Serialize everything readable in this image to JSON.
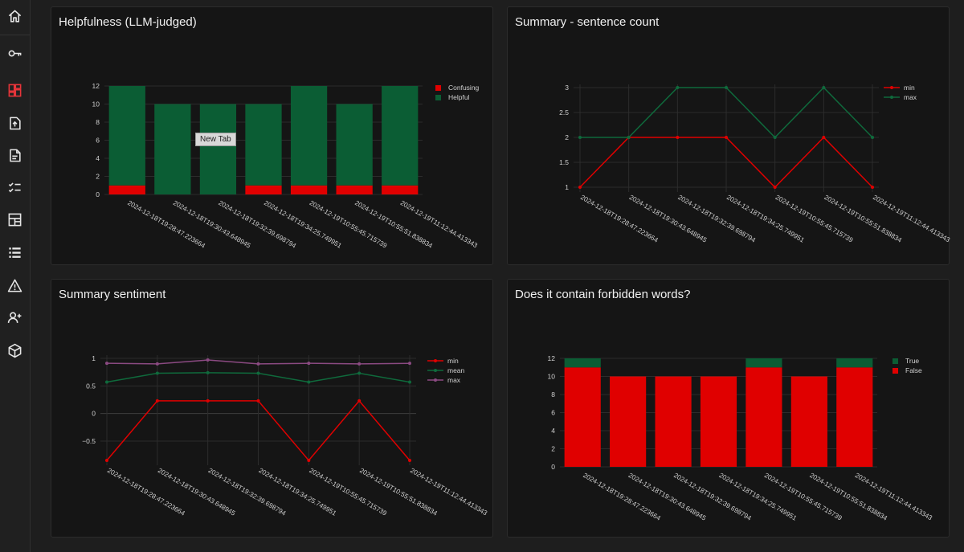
{
  "sidebar": {
    "items": [
      {
        "icon": "home-icon",
        "active": false
      },
      {
        "icon": "key-icon",
        "active": false
      },
      {
        "icon": "dashboard-icon",
        "active": true
      },
      {
        "icon": "upload-file-icon",
        "active": false
      },
      {
        "icon": "document-icon",
        "active": false
      },
      {
        "icon": "checklist-icon",
        "active": false
      },
      {
        "icon": "layout-icon",
        "active": false
      },
      {
        "icon": "list-icon",
        "active": false
      },
      {
        "icon": "warning-icon",
        "active": false
      },
      {
        "icon": "add-user-icon",
        "active": false
      },
      {
        "icon": "cube-icon",
        "active": false
      }
    ]
  },
  "colors": {
    "red": "#e00000",
    "green": "#0b5d34",
    "purple": "#8b4a82",
    "line_green": "#0f6a3c"
  },
  "tooltip": "New Tab",
  "panels": [
    {
      "title": "Helpfulness (LLM-judged)"
    },
    {
      "title": "Summary - sentence count"
    },
    {
      "title": "Summary sentiment"
    },
    {
      "title": "Does it contain forbidden words?"
    }
  ],
  "chart_data": [
    {
      "type": "bar",
      "stacked": true,
      "categories": [
        "2024-12-18T19:28:47.223664",
        "2024-12-18T19:30:43.648945",
        "2024-12-18T19:32:39.698794",
        "2024-12-18T19:34:25.749951",
        "2024-12-19T10:55:45.715739",
        "2024-12-19T10:55:51.838834",
        "2024-12-19T11:12:44.413343"
      ],
      "series": [
        {
          "name": "Confusing",
          "values": [
            1,
            0,
            0,
            1,
            1,
            1,
            1
          ],
          "color": "#e00000"
        },
        {
          "name": "Helpful",
          "values": [
            11,
            10,
            10,
            9,
            11,
            9,
            11
          ],
          "color": "#0b5d34"
        }
      ],
      "ylim": [
        0,
        12
      ],
      "yticks": [
        0,
        2,
        4,
        6,
        8,
        10,
        12
      ],
      "grid": true,
      "legend": "top-right"
    },
    {
      "type": "line",
      "categories": [
        "2024-12-18T19:28:47.223664",
        "2024-12-18T19:30:43.648945",
        "2024-12-18T19:32:39.698794",
        "2024-12-18T19:34:25.749951",
        "2024-12-19T10:55:45.715739",
        "2024-12-19T10:55:51.838834",
        "2024-12-19T11:12:44.413343"
      ],
      "series": [
        {
          "name": "min",
          "values": [
            1,
            2,
            2,
            2,
            1,
            2,
            1
          ],
          "color": "#e00000"
        },
        {
          "name": "max",
          "values": [
            2,
            2,
            3,
            3,
            2,
            3,
            2
          ],
          "color": "#0f6a3c"
        }
      ],
      "ylim": [
        1,
        3
      ],
      "yticks": [
        1,
        1.5,
        2,
        2.5,
        3
      ],
      "grid": true,
      "legend": "top-right"
    },
    {
      "type": "line",
      "categories": [
        "2024-12-18T19:28:47.223664",
        "2024-12-18T19:30:43.648945",
        "2024-12-18T19:32:39.698794",
        "2024-12-18T19:34:25.749951",
        "2024-12-19T10:55:45.715739",
        "2024-12-19T10:55:51.838834",
        "2024-12-19T11:12:44.413343"
      ],
      "series": [
        {
          "name": "min",
          "values": [
            -0.85,
            0.23,
            0.23,
            0.23,
            -0.85,
            0.23,
            -0.85
          ],
          "color": "#e00000"
        },
        {
          "name": "mean",
          "values": [
            0.57,
            0.73,
            0.74,
            0.73,
            0.57,
            0.73,
            0.57
          ],
          "color": "#0f6a3c"
        },
        {
          "name": "max",
          "values": [
            0.91,
            0.9,
            0.97,
            0.9,
            0.91,
            0.9,
            0.91
          ],
          "color": "#8b4a82"
        }
      ],
      "ylim": [
        -0.85,
        1
      ],
      "yticks": [
        -0.5,
        0,
        0.5,
        1
      ],
      "grid": true,
      "legend": "top-right"
    },
    {
      "type": "bar",
      "stacked": true,
      "categories": [
        "2024-12-18T19:28:47.223664",
        "2024-12-18T19:30:43.648945",
        "2024-12-18T19:32:39.698794",
        "2024-12-18T19:34:25.749951",
        "2024-12-19T10:55:45.715739",
        "2024-12-19T10:55:51.838834",
        "2024-12-19T11:12:44.413343"
      ],
      "series": [
        {
          "name": "False",
          "values": [
            11,
            10,
            10,
            10,
            11,
            10,
            11
          ],
          "color": "#e00000"
        },
        {
          "name": "True",
          "values": [
            1,
            0,
            0,
            0,
            1,
            0,
            1
          ],
          "color": "#0b5d34"
        }
      ],
      "legend_order": [
        "True",
        "False"
      ],
      "ylim": [
        0,
        12
      ],
      "yticks": [
        0,
        2,
        4,
        6,
        8,
        10,
        12
      ],
      "grid": true,
      "legend": "top-right"
    }
  ]
}
